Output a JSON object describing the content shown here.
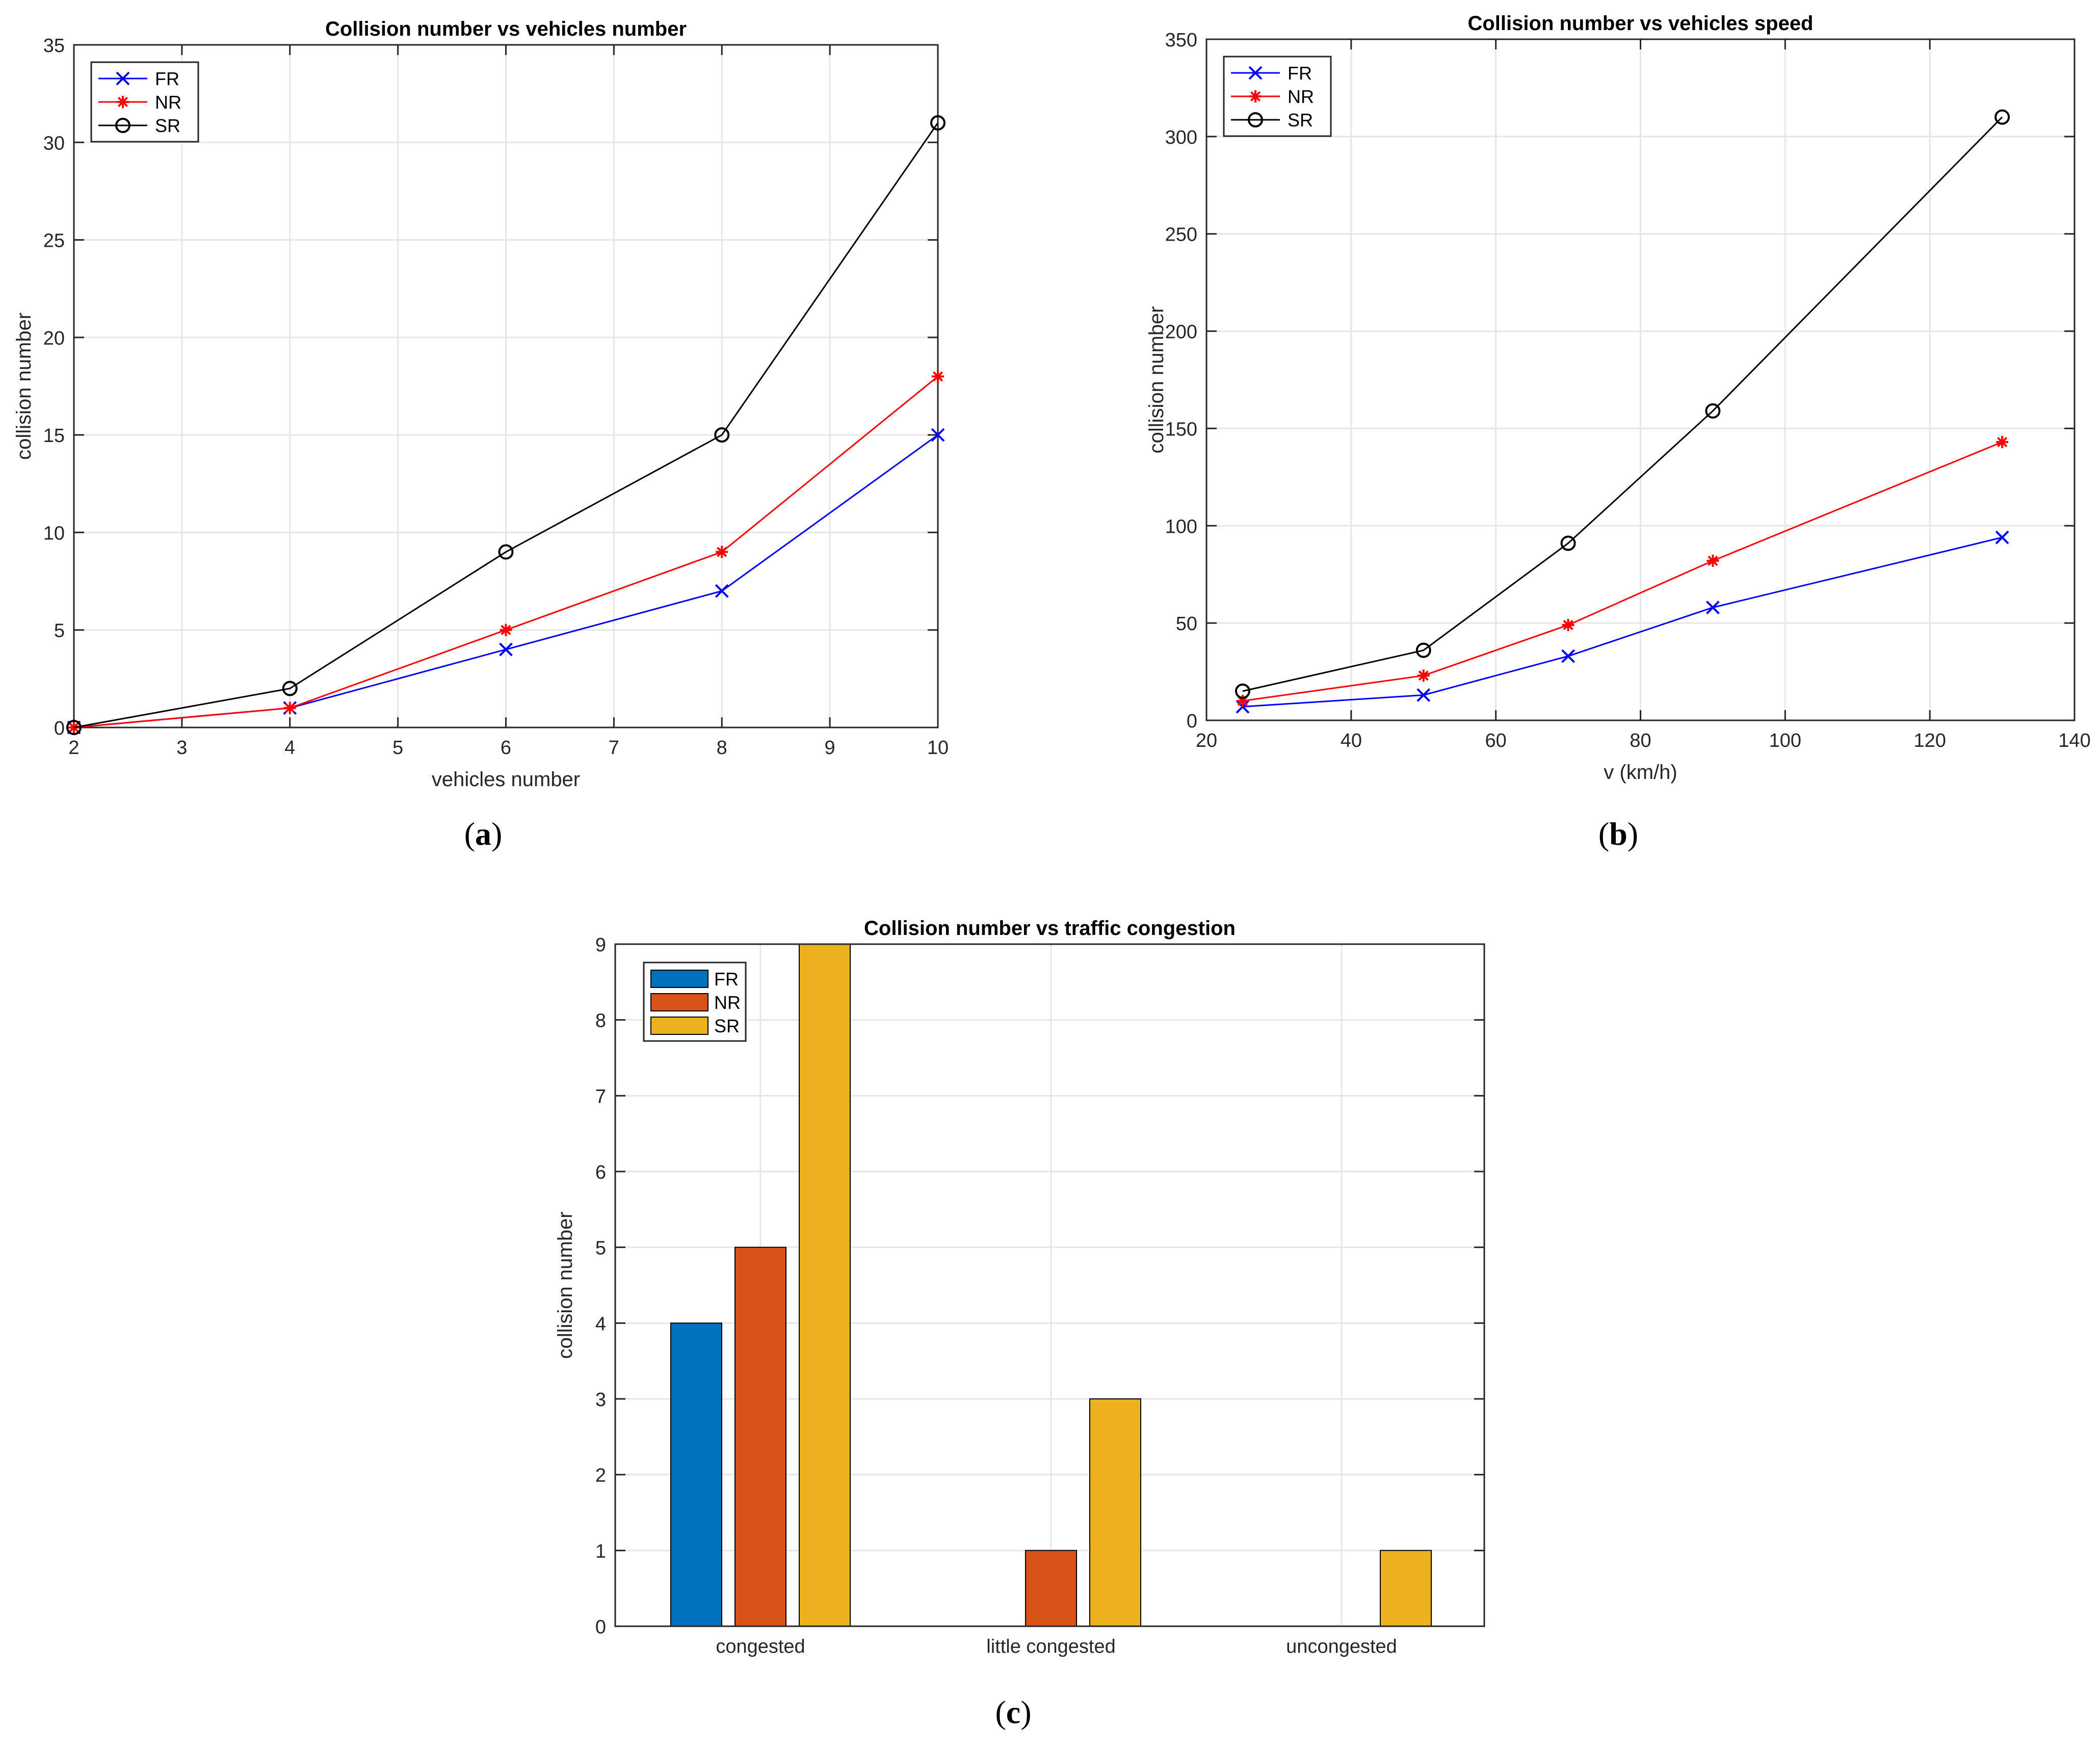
{
  "figure": {
    "captions": [
      {
        "open": "(",
        "letter": "a",
        "close": ")"
      },
      {
        "open": "(",
        "letter": "b",
        "close": ")"
      },
      {
        "open": "(",
        "letter": "c",
        "close": ")"
      }
    ]
  },
  "colors": {
    "FR_line": "#0000ff",
    "NR_line": "#ff0000",
    "SR_line": "#000000",
    "FR_bar": "#0072bd",
    "NR_bar": "#d95319",
    "SR_bar": "#edb120",
    "grid": "#e6e6e6",
    "axis": "#262626"
  },
  "chart_data": [
    {
      "id": "a",
      "type": "line",
      "title": "Collision number vs vehicles number",
      "xlabel": "vehicles number",
      "ylabel": "collision number",
      "xlim": [
        2,
        10
      ],
      "ylim": [
        0,
        35
      ],
      "xticks": [
        2,
        3,
        4,
        5,
        6,
        7,
        8,
        9,
        10
      ],
      "yticks": [
        0,
        5,
        10,
        15,
        20,
        25,
        30,
        35
      ],
      "grid": true,
      "legend_position": "top-left",
      "x": [
        2,
        4,
        6,
        8,
        10
      ],
      "series": [
        {
          "name": "FR",
          "marker": "x",
          "values": [
            0,
            1,
            4,
            7,
            15
          ]
        },
        {
          "name": "NR",
          "marker": "star",
          "values": [
            0,
            1,
            5,
            9,
            18
          ]
        },
        {
          "name": "SR",
          "marker": "circle",
          "values": [
            0,
            2,
            9,
            15,
            31
          ]
        }
      ]
    },
    {
      "id": "b",
      "type": "line",
      "title": "Collision number vs vehicles speed",
      "xlabel": "v (km/h)",
      "ylabel": "collision number",
      "xlim": [
        20,
        140
      ],
      "ylim": [
        0,
        350
      ],
      "xticks": [
        20,
        40,
        60,
        80,
        100,
        120,
        140
      ],
      "yticks": [
        0,
        50,
        100,
        150,
        200,
        250,
        300,
        350
      ],
      "grid": true,
      "legend_position": "top-left",
      "x": [
        25,
        50,
        70,
        90,
        130
      ],
      "series": [
        {
          "name": "FR",
          "marker": "x",
          "values": [
            7,
            13,
            33,
            58,
            94
          ]
        },
        {
          "name": "NR",
          "marker": "star",
          "values": [
            10,
            23,
            49,
            82,
            143
          ]
        },
        {
          "name": "SR",
          "marker": "circle",
          "values": [
            15,
            36,
            91,
            159,
            310
          ]
        }
      ]
    },
    {
      "id": "c",
      "type": "bar",
      "title": "Collision number vs traffic congestion",
      "xlabel": "",
      "ylabel": "collision number",
      "ylim": [
        0,
        9
      ],
      "yticks": [
        0,
        1,
        2,
        3,
        4,
        5,
        6,
        7,
        8,
        9
      ],
      "grid": true,
      "legend_position": "top-left",
      "categories": [
        "congested",
        "little congested",
        "uncongested"
      ],
      "series": [
        {
          "name": "FR",
          "values": [
            4,
            0,
            0
          ]
        },
        {
          "name": "NR",
          "values": [
            5,
            1,
            0
          ]
        },
        {
          "name": "SR",
          "values": [
            9,
            3,
            1
          ]
        }
      ]
    }
  ]
}
